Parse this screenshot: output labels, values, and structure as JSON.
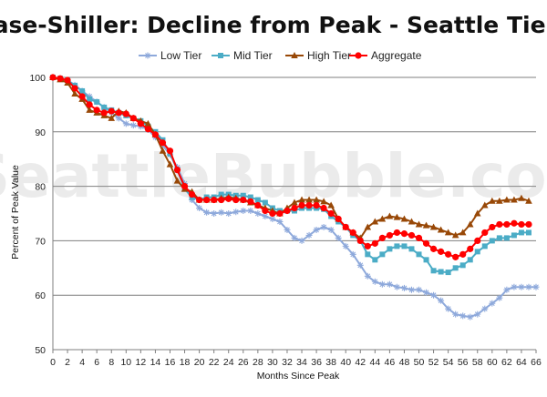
{
  "chart_data": {
    "type": "line",
    "title": "Case-Shiller: Decline from Peak - Seattle Tiers",
    "xlabel": "Months Since Peak",
    "ylabel": "Percent of Peak Value",
    "watermark": "SeattleBubble.com",
    "xlim": [
      0,
      66
    ],
    "ylim": [
      50,
      100
    ],
    "x_ticks": [
      0,
      2,
      4,
      6,
      8,
      10,
      12,
      14,
      16,
      18,
      20,
      22,
      24,
      26,
      28,
      30,
      32,
      34,
      36,
      38,
      40,
      42,
      44,
      46,
      48,
      50,
      52,
      54,
      56,
      58,
      60,
      62,
      64,
      66
    ],
    "y_ticks": [
      50,
      60,
      70,
      80,
      90,
      100
    ],
    "grid": "horizontal",
    "legend_position": "top",
    "series": [
      {
        "name": "Low Tier",
        "color": "#8EA9DB",
        "marker": "star",
        "x": [
          0,
          1,
          2,
          3,
          4,
          5,
          6,
          7,
          8,
          9,
          10,
          11,
          12,
          13,
          14,
          15,
          16,
          17,
          18,
          19,
          20,
          21,
          22,
          23,
          24,
          25,
          26,
          27,
          28,
          29,
          30,
          31,
          32,
          33,
          34,
          35,
          36,
          37,
          38,
          39,
          40,
          41,
          42,
          43,
          44,
          45,
          46,
          47,
          48,
          49,
          50,
          51,
          52,
          53,
          54,
          55,
          56,
          57,
          58,
          59,
          60,
          61,
          62,
          63,
          64,
          65,
          66
        ],
        "values": [
          100,
          99.8,
          99.5,
          98.6,
          97.5,
          96.5,
          95.5,
          94.5,
          93.5,
          92.5,
          91.5,
          91.2,
          91.0,
          90.4,
          89.0,
          87.5,
          85.8,
          83.5,
          80.5,
          77.5,
          76.0,
          75.2,
          75.0,
          75.2,
          75.0,
          75.3,
          75.5,
          75.5,
          75.0,
          74.5,
          74.0,
          73.5,
          72.0,
          70.5,
          70.0,
          71.0,
          72.0,
          72.5,
          72.0,
          70.5,
          69.0,
          67.5,
          65.5,
          63.5,
          62.5,
          62.0,
          62.0,
          61.5,
          61.3,
          61.0,
          61.0,
          60.5,
          60.0,
          59.0,
          57.5,
          56.5,
          56.2,
          56.0,
          56.5,
          57.5,
          58.5,
          59.5,
          61.0,
          61.5,
          61.5,
          61.5,
          61.5
        ]
      },
      {
        "name": "Mid Tier",
        "color": "#4BACC6",
        "marker": "square",
        "x": [
          0,
          1,
          2,
          3,
          4,
          5,
          6,
          7,
          8,
          9,
          10,
          11,
          12,
          13,
          14,
          15,
          16,
          17,
          18,
          19,
          20,
          21,
          22,
          23,
          24,
          25,
          26,
          27,
          28,
          29,
          30,
          31,
          32,
          33,
          34,
          35,
          36,
          37,
          38,
          39,
          40,
          41,
          42,
          43,
          44,
          45,
          46,
          47,
          48,
          49,
          50,
          51,
          52,
          53,
          54,
          55,
          56,
          57,
          58,
          59,
          60,
          61,
          62,
          63,
          64,
          65
        ],
        "values": [
          100,
          99.8,
          99.5,
          98.5,
          97.5,
          96.0,
          95.5,
          94.5,
          94.0,
          93.5,
          93.0,
          92.5,
          92.0,
          91.0,
          90.0,
          88.5,
          86.0,
          83.0,
          79.5,
          78.0,
          77.5,
          78.0,
          78.0,
          78.5,
          78.5,
          78.3,
          78.3,
          78.0,
          77.5,
          77.0,
          76.0,
          75.5,
          75.5,
          75.5,
          76.0,
          76.0,
          76.0,
          75.8,
          74.5,
          73.5,
          72.5,
          71.0,
          70.0,
          67.5,
          66.5,
          67.5,
          68.5,
          69.0,
          69.0,
          68.5,
          67.5,
          66.5,
          64.5,
          64.3,
          64.2,
          65.0,
          65.5,
          66.5,
          68.0,
          69.0,
          70.0,
          70.5,
          70.5,
          71.0,
          71.5,
          71.5
        ]
      },
      {
        "name": "High Tier",
        "color": "#984807",
        "marker": "triangle",
        "x": [
          0,
          1,
          2,
          3,
          4,
          5,
          6,
          7,
          8,
          9,
          10,
          11,
          12,
          13,
          14,
          15,
          16,
          17,
          18,
          19,
          20,
          21,
          22,
          23,
          24,
          25,
          26,
          27,
          28,
          29,
          30,
          31,
          32,
          33,
          34,
          35,
          36,
          37,
          38,
          39,
          40,
          41,
          42,
          43,
          44,
          45,
          46,
          47,
          48,
          49,
          50,
          51,
          52,
          53,
          54,
          55,
          56,
          57,
          58,
          59,
          60,
          61,
          62,
          63,
          64,
          65
        ],
        "values": [
          100,
          99.6,
          99.0,
          97.0,
          96.0,
          94.0,
          93.5,
          93.0,
          92.5,
          93.8,
          93.5,
          92.5,
          92.0,
          91.5,
          89.5,
          86.5,
          84.0,
          81.0,
          79.5,
          79.0,
          77.5,
          77.5,
          77.5,
          77.8,
          78.0,
          77.8,
          77.5,
          77.0,
          76.5,
          76.0,
          75.5,
          75.0,
          76.0,
          77.0,
          77.5,
          77.5,
          77.5,
          77.2,
          76.5,
          74.0,
          72.5,
          71.5,
          70.5,
          72.5,
          73.5,
          74.0,
          74.5,
          74.3,
          74.0,
          73.5,
          73.0,
          72.8,
          72.5,
          72.0,
          71.5,
          71.0,
          71.5,
          73.0,
          75.0,
          76.5,
          77.3,
          77.3,
          77.5,
          77.5,
          77.8,
          77.3
        ]
      },
      {
        "name": "Aggregate",
        "color": "#FF0000",
        "marker": "circle",
        "x": [
          0,
          1,
          2,
          3,
          4,
          5,
          6,
          7,
          8,
          9,
          10,
          11,
          12,
          13,
          14,
          15,
          16,
          17,
          18,
          19,
          20,
          21,
          22,
          23,
          24,
          25,
          26,
          27,
          28,
          29,
          30,
          31,
          32,
          33,
          34,
          35,
          36,
          37,
          38,
          39,
          40,
          41,
          42,
          43,
          44,
          45,
          46,
          47,
          48,
          49,
          50,
          51,
          52,
          53,
          54,
          55,
          56,
          57,
          58,
          59,
          60,
          61,
          62,
          63,
          64,
          65
        ],
        "values": [
          100,
          99.8,
          99.5,
          98.0,
          96.5,
          95.0,
          94.0,
          93.5,
          93.8,
          93.5,
          93.3,
          92.5,
          91.5,
          90.5,
          89.5,
          88.0,
          86.5,
          83.0,
          80.0,
          78.5,
          77.5,
          77.5,
          77.5,
          77.5,
          77.7,
          77.5,
          77.5,
          77.2,
          76.5,
          75.5,
          75.0,
          75.0,
          75.5,
          76.0,
          76.5,
          76.5,
          76.5,
          76.0,
          75.0,
          74.0,
          72.5,
          71.5,
          70.0,
          69.0,
          69.5,
          70.5,
          71.0,
          71.5,
          71.3,
          71.0,
          70.5,
          69.5,
          68.5,
          68.0,
          67.5,
          67.0,
          67.5,
          68.5,
          70.0,
          71.5,
          72.5,
          73.0,
          73.0,
          73.2,
          73.0,
          73.0
        ]
      }
    ]
  }
}
